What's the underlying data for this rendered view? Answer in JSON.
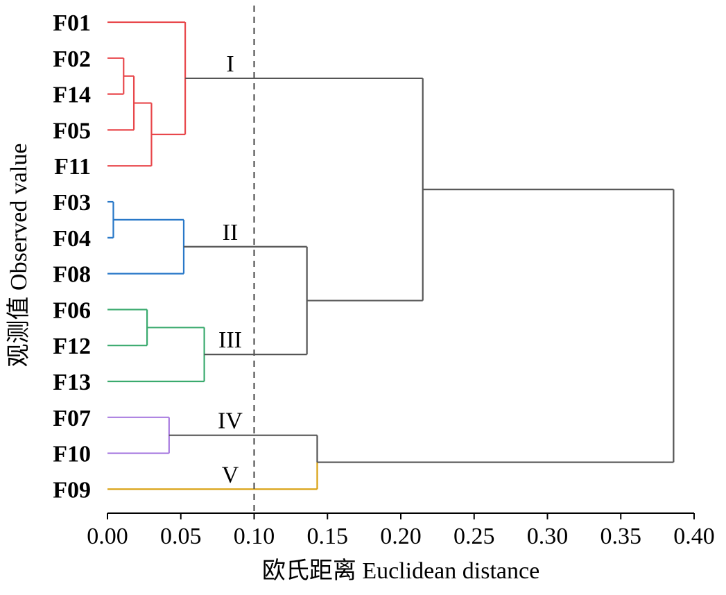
{
  "chart_data": {
    "type": "dendrogram",
    "xlabel": "欧氏距离 Euclidean distance",
    "ylabel": "观测值 Observed value",
    "xlim": [
      0,
      0.4
    ],
    "xticks": [
      0,
      0.05,
      0.1,
      0.15,
      0.2,
      0.25,
      0.3,
      0.35,
      0.4
    ],
    "xtick_labels": [
      "0.00",
      "0.05",
      "0.10",
      "0.15",
      "0.20",
      "0.25",
      "0.30",
      "0.35",
      "0.40"
    ],
    "leaves": [
      "F01",
      "F02",
      "F14",
      "F05",
      "F11",
      "F03",
      "F04",
      "F08",
      "F06",
      "F12",
      "F13",
      "F07",
      "F10",
      "F09"
    ],
    "cutoff_line": {
      "x": 0.1,
      "style": "dashed",
      "color": "#555555"
    },
    "colors": {
      "I": "#e8474b",
      "II": "#2878c8",
      "III": "#3aaa6e",
      "IV": "#a97de0",
      "V": "#d9a011",
      "link": "#555555"
    },
    "merges": [
      {
        "id": "m1",
        "children": [
          "F02",
          "F14"
        ],
        "distance": 0.011,
        "color": "I"
      },
      {
        "id": "m2",
        "children": [
          "m1",
          "F05"
        ],
        "distance": 0.018,
        "color": "I"
      },
      {
        "id": "m3",
        "children": [
          "m2",
          "F11"
        ],
        "distance": 0.03,
        "color": "I"
      },
      {
        "id": "m4",
        "children": [
          "F01",
          "m3"
        ],
        "distance": 0.053,
        "color": "I"
      },
      {
        "id": "m5",
        "children": [
          "F03",
          "F04"
        ],
        "distance": 0.004,
        "color": "II"
      },
      {
        "id": "m6",
        "children": [
          "m5",
          "F08"
        ],
        "distance": 0.052,
        "color": "II"
      },
      {
        "id": "m7",
        "children": [
          "F06",
          "F12"
        ],
        "distance": 0.027,
        "color": "III"
      },
      {
        "id": "m8",
        "children": [
          "m7",
          "F13"
        ],
        "distance": 0.066,
        "color": "III"
      },
      {
        "id": "m9",
        "children": [
          "F07",
          "F10"
        ],
        "distance": 0.042,
        "color": "IV"
      },
      {
        "id": "m10",
        "children": [
          "m6",
          "m8"
        ],
        "distance": 0.136,
        "color": "link"
      },
      {
        "id": "m11",
        "children": [
          "m9",
          "F09"
        ],
        "distance": 0.143,
        "color": "link",
        "color_bottom": "V"
      },
      {
        "id": "m12",
        "children": [
          "m4",
          "m10"
        ],
        "distance": 0.215,
        "color": "link"
      },
      {
        "id": "m13",
        "children": [
          "m12",
          "m11"
        ],
        "distance": 0.386,
        "color": "link"
      }
    ],
    "cluster_labels": [
      {
        "label": "I",
        "node": "m4"
      },
      {
        "label": "II",
        "node": "m6"
      },
      {
        "label": "III",
        "node": "m8"
      },
      {
        "label": "IV",
        "node": "m9"
      },
      {
        "label": "V",
        "node": "F09"
      }
    ]
  }
}
